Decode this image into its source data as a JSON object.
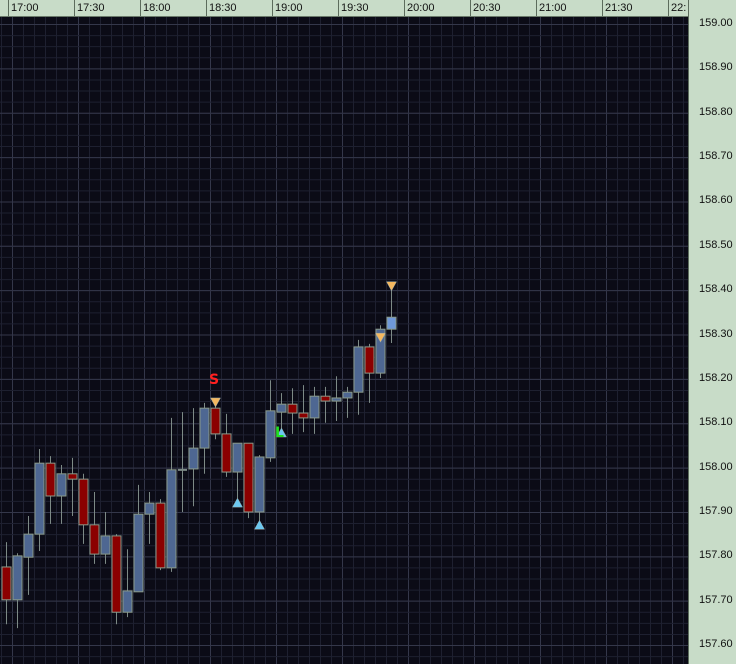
{
  "chart_data": {
    "type": "candlestick",
    "x_ticks": [
      "17:00",
      "17:30",
      "18:00",
      "18:30",
      "19:00",
      "19:30",
      "20:00",
      "20:30",
      "21:00",
      "21:30",
      "22:"
    ],
    "y_ticks": [
      "159.00",
      "158.90",
      "158.80",
      "158.70",
      "158.60",
      "158.50",
      "158.40",
      "158.30",
      "158.20",
      "158.10",
      "158.00",
      "157.90",
      "157.80",
      "157.70",
      "157.60"
    ],
    "ylim": [
      157.6,
      159.0
    ],
    "xlim": [
      "16:55",
      "22:00"
    ],
    "interval_minutes": 5,
    "grid": true,
    "colors": {
      "background": "#0b0b16",
      "grid_minor": "#1e2030",
      "grid_major": "#34374a",
      "up": "#4e6792",
      "down": "#8b0000",
      "last": "#6f98d8",
      "border": "#8a9a8a",
      "sell_marker": "#f5b860",
      "buy_marker": "#6cc8f0",
      "s_label": "#ff2020",
      "l_label": "#20e020",
      "axis_panel": "#c8dcc8"
    },
    "candles": [
      {
        "t": "16:55",
        "o": 157.776,
        "h": 157.832,
        "l": 157.647,
        "c": 157.702
      },
      {
        "t": "17:00",
        "o": 157.702,
        "h": 157.807,
        "l": 157.638,
        "c": 157.801
      },
      {
        "t": "17:05",
        "o": 157.798,
        "h": 157.891,
        "l": 157.713,
        "c": 157.85
      },
      {
        "t": "17:10",
        "o": 157.85,
        "h": 158.042,
        "l": 157.812,
        "c": 158.01
      },
      {
        "t": "17:15",
        "o": 158.01,
        "h": 158.026,
        "l": 157.873,
        "c": 157.936
      },
      {
        "t": "17:20",
        "o": 157.936,
        "h": 158.006,
        "l": 157.873,
        "c": 157.986
      },
      {
        "t": "17:25",
        "o": 157.986,
        "h": 158.022,
        "l": 157.891,
        "c": 157.974
      },
      {
        "t": "17:30",
        "o": 157.974,
        "h": 157.986,
        "l": 157.828,
        "c": 157.871
      },
      {
        "t": "17:35",
        "o": 157.871,
        "h": 157.945,
        "l": 157.783,
        "c": 157.805
      },
      {
        "t": "17:40",
        "o": 157.805,
        "h": 157.9,
        "l": 157.783,
        "c": 157.846
      },
      {
        "t": "17:45",
        "o": 157.846,
        "h": 157.85,
        "l": 157.647,
        "c": 157.674
      },
      {
        "t": "17:50",
        "o": 157.674,
        "h": 157.816,
        "l": 157.663,
        "c": 157.722
      },
      {
        "t": "17:55",
        "o": 157.72,
        "h": 157.961,
        "l": 157.72,
        "c": 157.895
      },
      {
        "t": "18:00",
        "o": 157.895,
        "h": 157.945,
        "l": 157.828,
        "c": 157.92
      },
      {
        "t": "18:05",
        "o": 157.92,
        "h": 157.929,
        "l": 157.769,
        "c": 157.774
      },
      {
        "t": "18:10",
        "o": 157.774,
        "h": 158.112,
        "l": 157.765,
        "c": 157.995
      },
      {
        "t": "18:15",
        "o": 157.995,
        "h": 158.125,
        "l": 157.9,
        "c": 157.996
      },
      {
        "t": "18:20",
        "o": 157.997,
        "h": 158.134,
        "l": 157.913,
        "c": 158.044
      },
      {
        "t": "18:25",
        "o": 158.044,
        "h": 158.146,
        "l": 157.986,
        "c": 158.134
      },
      {
        "t": "18:30",
        "o": 158.134,
        "h": 158.155,
        "l": 158.064,
        "c": 158.076
      },
      {
        "t": "18:35",
        "o": 158.076,
        "h": 158.121,
        "l": 157.979,
        "c": 157.99
      },
      {
        "t": "18:40",
        "o": 157.99,
        "h": 158.055,
        "l": 157.931,
        "c": 158.055
      },
      {
        "t": "18:45",
        "o": 158.055,
        "h": 158.055,
        "l": 157.886,
        "c": 157.9
      },
      {
        "t": "18:50",
        "o": 157.9,
        "h": 158.028,
        "l": 157.877,
        "c": 158.024
      },
      {
        "t": "18:55",
        "o": 158.022,
        "h": 158.197,
        "l": 158.013,
        "c": 158.128
      },
      {
        "t": "19:00",
        "o": 158.125,
        "h": 158.168,
        "l": 158.085,
        "c": 158.143
      },
      {
        "t": "19:05",
        "o": 158.143,
        "h": 158.179,
        "l": 158.076,
        "c": 158.123
      },
      {
        "t": "19:10",
        "o": 158.123,
        "h": 158.186,
        "l": 158.08,
        "c": 158.112
      },
      {
        "t": "19:15",
        "o": 158.112,
        "h": 158.182,
        "l": 158.076,
        "c": 158.161
      },
      {
        "t": "19:20",
        "o": 158.161,
        "h": 158.182,
        "l": 158.101,
        "c": 158.15
      },
      {
        "t": "19:25",
        "o": 158.15,
        "h": 158.206,
        "l": 158.105,
        "c": 158.157
      },
      {
        "t": "19:30",
        "o": 158.157,
        "h": 158.182,
        "l": 158.112,
        "c": 158.17
      },
      {
        "t": "19:35",
        "o": 158.17,
        "h": 158.288,
        "l": 158.119,
        "c": 158.272
      },
      {
        "t": "19:40",
        "o": 158.272,
        "h": 158.279,
        "l": 158.146,
        "c": 158.213
      },
      {
        "t": "19:45",
        "o": 158.213,
        "h": 158.321,
        "l": 158.202,
        "c": 158.312
      },
      {
        "t": "19:50",
        "o": 158.312,
        "h": 158.4,
        "l": 158.281,
        "c": 158.339
      }
    ],
    "markers": [
      {
        "t": "18:30",
        "price": 158.148,
        "type": "down-triangle",
        "color": "sell_marker"
      },
      {
        "t": "18:40",
        "price": 157.92,
        "type": "up-triangle",
        "color": "buy_marker"
      },
      {
        "t": "18:50",
        "price": 157.87,
        "type": "up-triangle",
        "color": "buy_marker"
      },
      {
        "t": "19:00",
        "price": 158.078,
        "type": "up-triangle",
        "color": "buy_marker"
      },
      {
        "t": "19:45",
        "price": 158.294,
        "type": "down-triangle",
        "color": "sell_marker"
      },
      {
        "t": "19:50",
        "price": 158.41,
        "type": "down-triangle",
        "color": "sell_marker"
      }
    ],
    "annotations": [
      {
        "text": "S",
        "t": "18:30",
        "price": 158.2,
        "color": "s_label"
      },
      {
        "text": "L",
        "t": "19:00",
        "price": 158.08,
        "color": "l_label"
      }
    ]
  }
}
